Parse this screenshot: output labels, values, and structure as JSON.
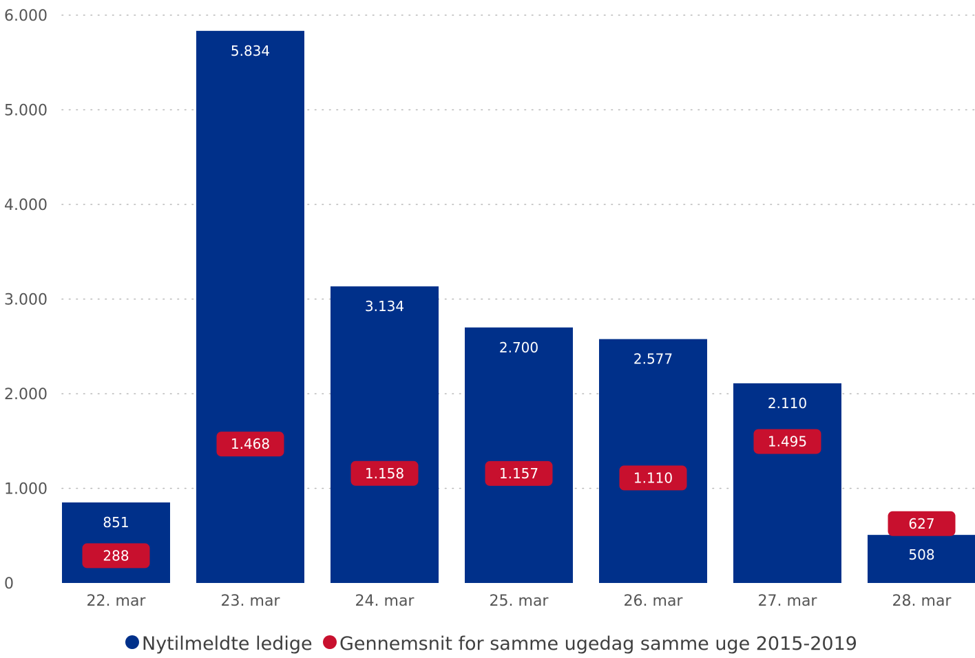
{
  "chart_data": {
    "type": "bar",
    "categories": [
      "22. mar",
      "23. mar",
      "24. mar",
      "25. mar",
      "26. mar",
      "27. mar",
      "28. mar"
    ],
    "series": [
      {
        "name": "Nytilmeldte ledige",
        "color": "#00308a",
        "values": [
          851,
          5834,
          3134,
          2700,
          2577,
          2110,
          508
        ],
        "labels": [
          "851",
          "5.834",
          "3.134",
          "2.700",
          "2.577",
          "2.110",
          "508"
        ]
      },
      {
        "name": "Gennemsnit for samme ugedag samme uge 2015-2019",
        "color": "#c8102e",
        "values": [
          288,
          1468,
          1158,
          1157,
          1110,
          1495,
          627
        ],
        "labels": [
          "288",
          "1.468",
          "1.158",
          "1.157",
          "1.110",
          "1.495",
          "627"
        ]
      }
    ],
    "ylim": [
      0,
      6000
    ],
    "yticks": [
      0,
      1000,
      2000,
      3000,
      4000,
      5000,
      6000
    ],
    "ytick_labels": [
      "0",
      "1.000",
      "2.000",
      "3.000",
      "4.000",
      "5.000",
      "6.000"
    ],
    "grid": true,
    "legend_position": "bottom"
  }
}
